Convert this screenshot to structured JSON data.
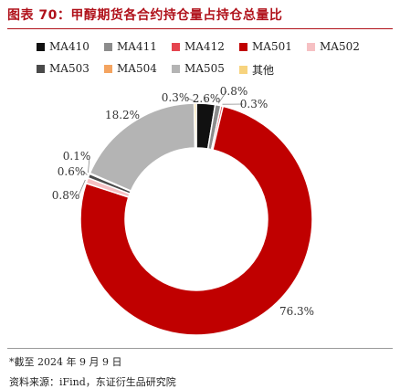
{
  "title": "图表 70：甲醇期货各合约持仓量占持仓总量比",
  "footnote": "*截至 2024 年 9 月 9 日",
  "source": "资料来源：iFind，东证衍生品研究院",
  "chart_data": {
    "type": "pie",
    "donut": true,
    "legend_position": "top",
    "labels": [
      "MA410",
      "MA411",
      "MA412",
      "MA501",
      "MA502",
      "MA503",
      "MA504",
      "MA505",
      "其他"
    ],
    "values": [
      2.6,
      0.8,
      0.3,
      76.3,
      0.8,
      0.6,
      0.1,
      18.2,
      0.3
    ],
    "value_labels": [
      "2.6%",
      "0.8%",
      "0.3%",
      "76.3%",
      "0.8%",
      "0.6%",
      "0.1%",
      "18.2%",
      "0.3%"
    ],
    "colors": [
      "#111111",
      "#8c8c8c",
      "#e5454f",
      "#c00000",
      "#f6c0c3",
      "#4a4a4a",
      "#f4a460",
      "#b4b4b4",
      "#f7d37e"
    ]
  }
}
